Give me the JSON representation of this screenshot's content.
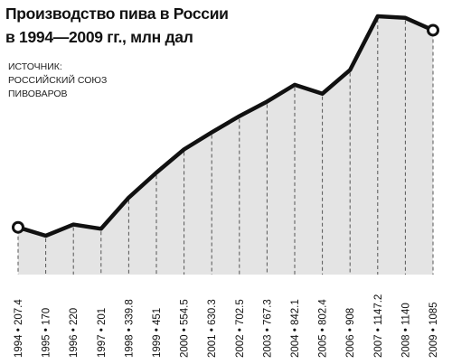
{
  "chart_data": {
    "type": "area",
    "title": [
      "Производство пива в России",
      "в 1994—2009 гг., млн дал"
    ],
    "source": [
      "ИСТОЧНИК:",
      "РОССИЙСКИЙ СОЮЗ",
      "ПИВОВАРОВ"
    ],
    "x": [
      "1994",
      "1995",
      "1996",
      "1997",
      "1998",
      "1999",
      "2000",
      "2001",
      "2002",
      "2003",
      "2004",
      "2005",
      "2006",
      "2007",
      "2008",
      "2009"
    ],
    "values": [
      207.4,
      170,
      220,
      201,
      339.8,
      451,
      554.5,
      630.3,
      702.5,
      767.3,
      842.1,
      802.4,
      908,
      1147.2,
      1140,
      1085
    ],
    "tick_labels": [
      "1994 • 207.4",
      "1995 • 170",
      "1996 • 220",
      "1997 • 201",
      "1998 • 339.8",
      "1999 • 451",
      "2000 • 554.5",
      "2001 • 630.3",
      "2002 • 702.5",
      "2003 • 767.3",
      "2004 • 842.1",
      "2005 • 802.4",
      "2006 • 908",
      "2007 • 1147.2",
      "2008 • 1140",
      "2009 • 1085"
    ],
    "grid": "dashed vertical",
    "markers": "open circles at first and last points",
    "colors": {
      "line": "#111111",
      "fill": "#e4e4e4",
      "grid": "#555555",
      "marker_fill": "#ffffff"
    }
  }
}
